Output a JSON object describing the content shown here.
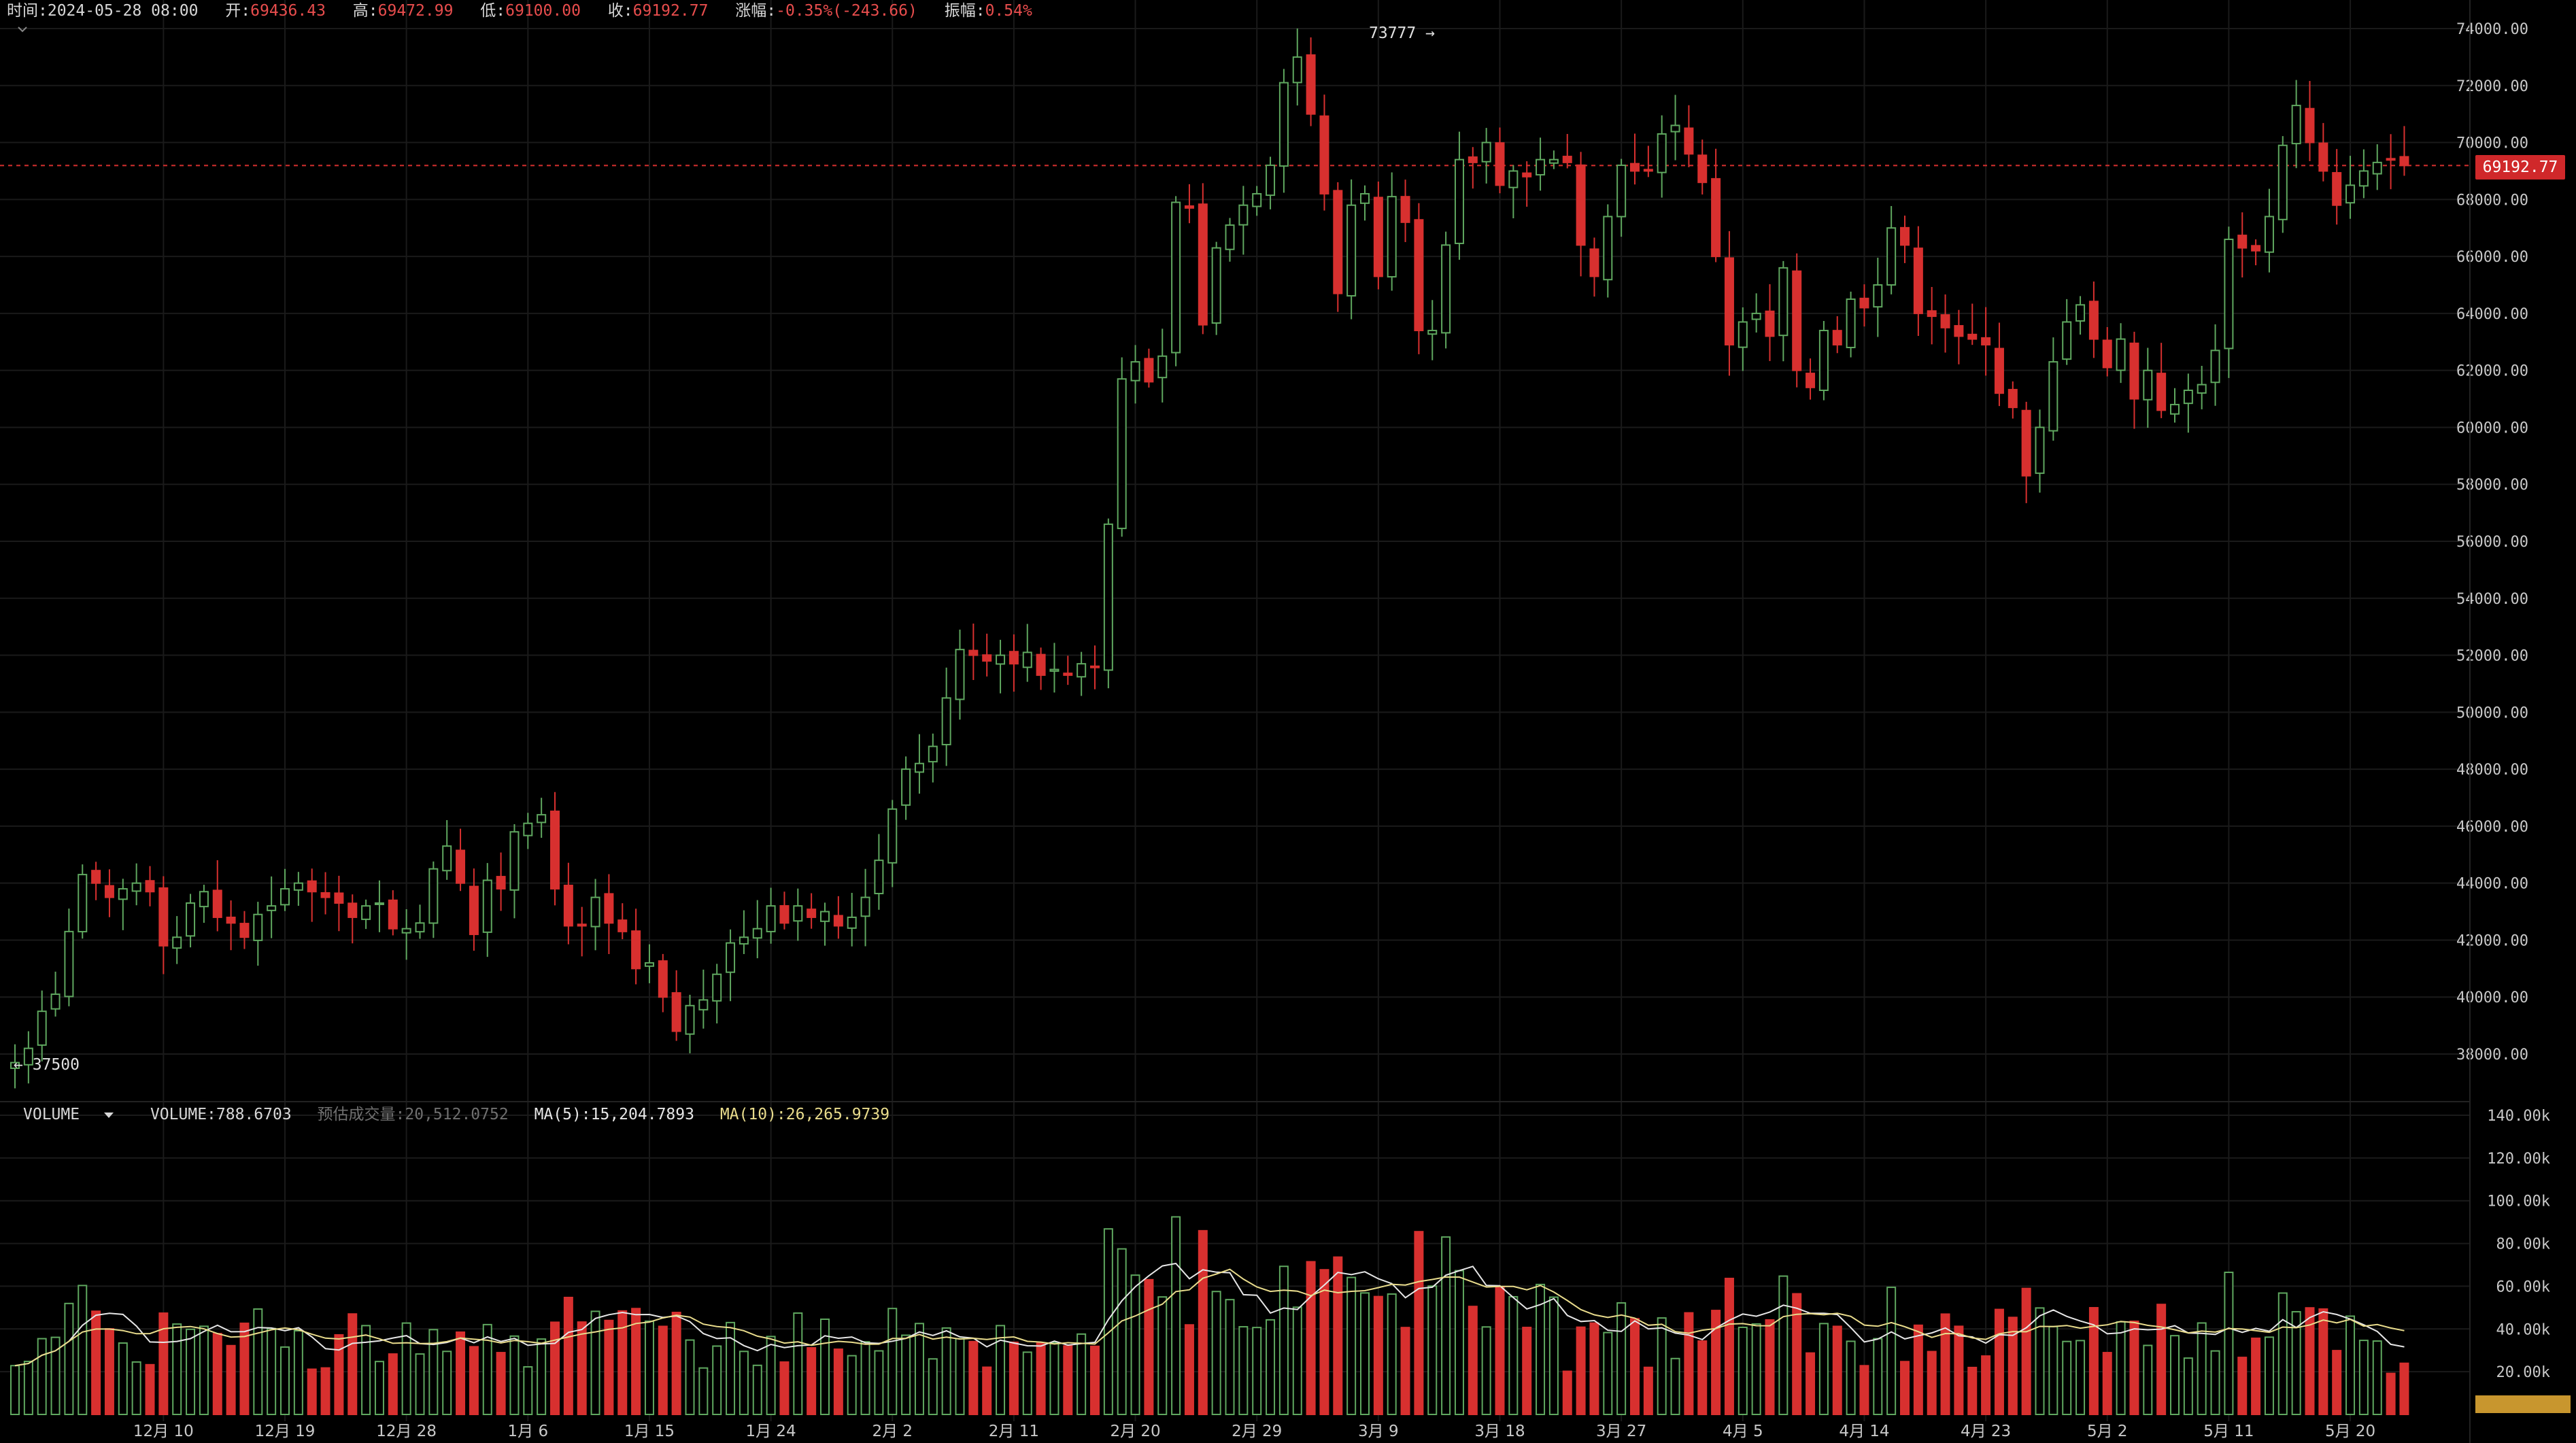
{
  "info": {
    "time_label": "时间:",
    "time": "2024-05-28 08:00",
    "open_label": "开:",
    "open": "69436.43",
    "high_label": "高:",
    "high": "69472.99",
    "low_label": "低:",
    "low": "69100.00",
    "close_label": "收:",
    "close": "69192.77",
    "change_label": "涨幅:",
    "change": "-0.35%(-243.66)",
    "amp_label": "振幅:",
    "amp": "0.54%"
  },
  "volume_bar": {
    "name": "VOLUME",
    "volume": "VOLUME:788.6703",
    "estimate": "预估成交量:20,512.0752",
    "ma5": "MA(5):15,204.7893",
    "ma10": "MA(10):26,265.9739"
  },
  "price_tag": "69192.77",
  "high_marker": "73777",
  "low_marker": "37500",
  "colors": {
    "up": "#5fa75f",
    "down": "#d8302f",
    "ma5": "#e6e6e6",
    "ma10": "#e9dc8c",
    "grid": "#1a1a1a",
    "price_line": "#d8302f"
  },
  "chart_data": {
    "type": "candlestick",
    "price_axis": {
      "min": 36000,
      "max": 74000,
      "ticks": [
        "74000.00",
        "72000.00",
        "70000.00",
        "68000.00",
        "66000.00",
        "64000.00",
        "62000.00",
        "60000.00",
        "58000.00",
        "56000.00",
        "54000.00",
        "52000.00",
        "50000.00",
        "48000.00",
        "46000.00",
        "44000.00",
        "42000.00",
        "40000.00",
        "38000.00"
      ]
    },
    "volume_axis": {
      "min": 0,
      "max": 140000,
      "ticks": [
        "140.00k",
        "120.00k",
        "100.00k",
        "80.00k",
        "60.00k",
        "40.00k",
        "20.00k"
      ]
    },
    "x_labels": [
      {
        "label": "12月 10",
        "i": 11
      },
      {
        "label": "12月 19",
        "i": 20
      },
      {
        "label": "12月 28",
        "i": 29
      },
      {
        "label": "1月 6",
        "i": 38
      },
      {
        "label": "1月 15",
        "i": 47
      },
      {
        "label": "1月 24",
        "i": 56
      },
      {
        "label": "2月 2",
        "i": 65
      },
      {
        "label": "2月 11",
        "i": 74
      },
      {
        "label": "2月 20",
        "i": 83
      },
      {
        "label": "2月 29",
        "i": 92
      },
      {
        "label": "3月 9",
        "i": 101
      },
      {
        "label": "3月 18",
        "i": 110
      },
      {
        "label": "3月 27",
        "i": 119
      },
      {
        "label": "4月 5",
        "i": 128
      },
      {
        "label": "4月 14",
        "i": 137
      },
      {
        "label": "4月 23",
        "i": 146
      },
      {
        "label": "5月 2",
        "i": 155
      },
      {
        "label": "5月 11",
        "i": 164
      },
      {
        "label": "5月 20",
        "i": 173
      }
    ],
    "close": [
      37700,
      38200,
      39500,
      40100,
      42300,
      44300,
      44000,
      43500,
      43800,
      44000,
      43700,
      41800,
      42100,
      43300,
      43700,
      42800,
      42600,
      42100,
      42900,
      43200,
      43800,
      44000,
      43700,
      43500,
      43300,
      42800,
      43200,
      43300,
      42400,
      42400,
      42600,
      44500,
      45300,
      44000,
      42200,
      44100,
      43800,
      45800,
      46100,
      46400,
      43800,
      42500,
      42500,
      43500,
      42600,
      42300,
      41000,
      41200,
      40000,
      38800,
      39700,
      39900,
      40800,
      41900,
      42100,
      42400,
      43200,
      42600,
      43200,
      42800,
      43000,
      42500,
      42800,
      43500,
      44800,
      46600,
      48000,
      48200,
      48800,
      50500,
      52200,
      52000,
      51800,
      52000,
      51700,
      52100,
      51300,
      51500,
      51300,
      51700,
      51600,
      56600,
      61700,
      62300,
      61600,
      62500,
      67900,
      67700,
      63600,
      66300,
      67100,
      67800,
      68200,
      69200,
      72100,
      73000,
      71000,
      68200,
      64700,
      67800,
      68200,
      65300,
      68100,
      67200,
      63400,
      63400,
      66400,
      69400,
      69300,
      70000,
      68500,
      69000,
      68800,
      69400,
      69400,
      69300,
      66400,
      65300,
      67400,
      69200,
      69000,
      69000,
      70300,
      70600,
      69600,
      68600,
      66000,
      62900,
      63700,
      64000,
      63200,
      65600,
      62000,
      61400,
      63400,
      62900,
      64500,
      64200,
      65000,
      67000,
      66400,
      64000,
      63900,
      63500,
      63200,
      63100,
      62900,
      61200,
      60700,
      58300,
      60000,
      62300,
      63700,
      64300,
      63100,
      62100,
      63100,
      61000,
      62000,
      60600,
      60800,
      61300,
      61500,
      62700,
      66600,
      66300,
      66200,
      67400,
      69900,
      71300,
      70000,
      69000,
      67800,
      68500,
      69000,
      69300,
      69400,
      69192
    ]
  }
}
